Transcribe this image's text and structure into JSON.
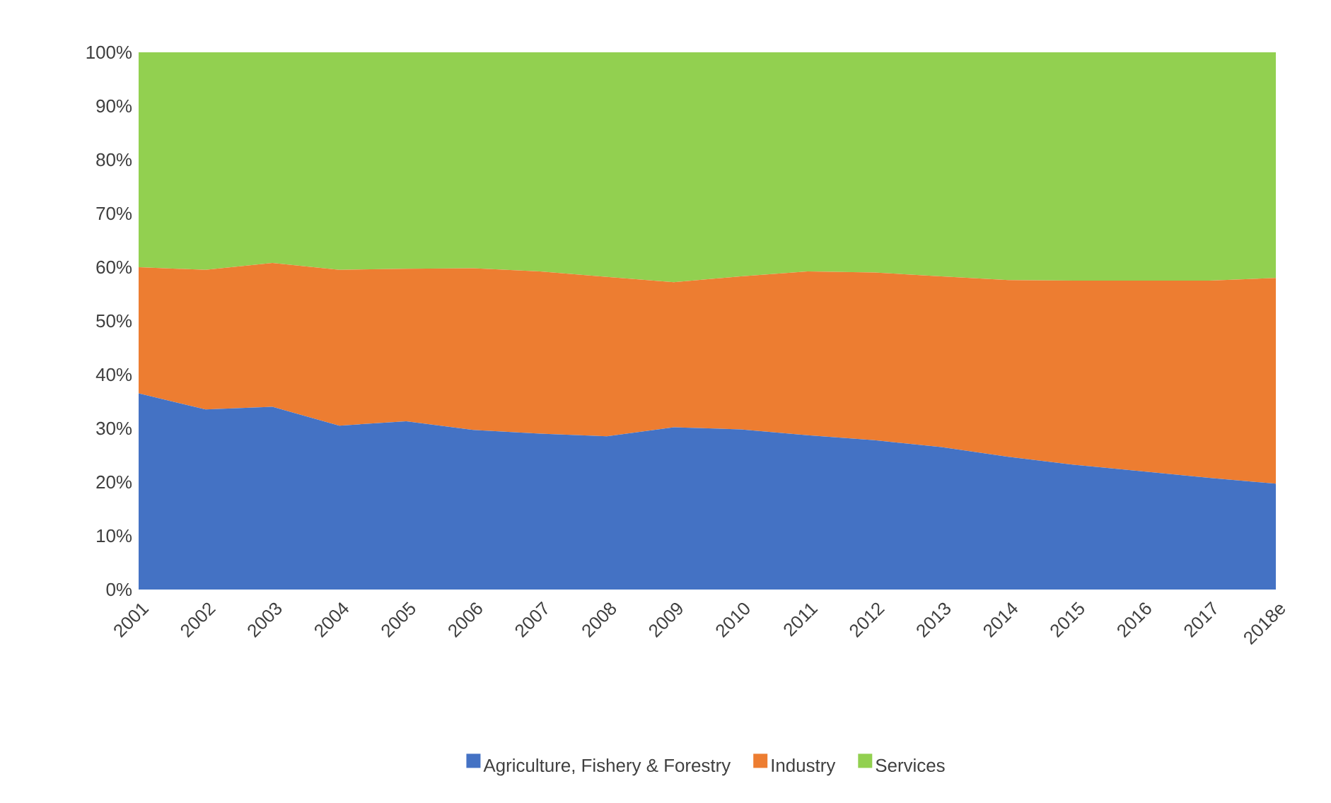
{
  "chart_data": {
    "type": "area",
    "stacked": true,
    "legend": "bottom",
    "categories": [
      "2001",
      "2002",
      "2003",
      "2004",
      "2005",
      "2006",
      "2007",
      "2008",
      "2009",
      "2010",
      "2011",
      "2012",
      "2013",
      "2014",
      "2015",
      "2016",
      "2017",
      "2018e"
    ],
    "series": [
      {
        "name": "Agriculture, Fishery & Forestry",
        "color": "#4472c4",
        "values": [
          36.5,
          33.5,
          34.0,
          30.5,
          31.3,
          29.7,
          29.0,
          28.5,
          30.2,
          29.8,
          28.7,
          27.8,
          26.5,
          24.7,
          23.2,
          22.0,
          20.8,
          19.7
        ]
      },
      {
        "name": "Industry",
        "color": "#ed7d31",
        "values": [
          23.5,
          26.0,
          26.8,
          29.0,
          28.4,
          30.1,
          30.2,
          29.7,
          27.0,
          28.5,
          30.5,
          31.2,
          31.8,
          32.9,
          34.3,
          35.5,
          36.7,
          38.3
        ]
      },
      {
        "name": "Services",
        "color": "#92d050",
        "values": [
          40.0,
          40.5,
          39.2,
          40.5,
          40.3,
          40.2,
          40.8,
          41.8,
          42.8,
          41.7,
          40.8,
          41.0,
          41.7,
          42.4,
          42.5,
          42.5,
          42.5,
          42.0
        ]
      }
    ],
    "ylim": [
      0,
      100
    ],
    "yticks": [
      {
        "value": 0,
        "label": "0%"
      },
      {
        "value": 10,
        "label": "10%"
      },
      {
        "value": 20,
        "label": "20%"
      },
      {
        "value": 30,
        "label": "30%"
      },
      {
        "value": 40,
        "label": "40%"
      },
      {
        "value": 50,
        "label": "50%"
      },
      {
        "value": 60,
        "label": "60%"
      },
      {
        "value": 70,
        "label": "70%"
      },
      {
        "value": 80,
        "label": "80%"
      },
      {
        "value": 90,
        "label": "90%"
      },
      {
        "value": 100,
        "label": "100%"
      }
    ]
  }
}
